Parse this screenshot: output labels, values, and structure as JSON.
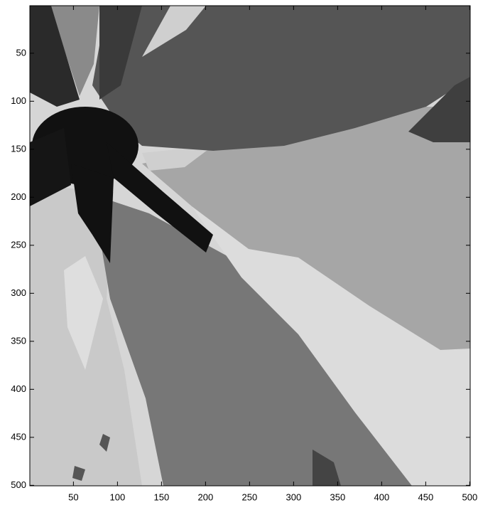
{
  "chart_data": {
    "type": "image",
    "xlim": [
      0.5,
      500.5
    ],
    "ylim": [
      0.5,
      500.5
    ],
    "y_reversed": true,
    "xticks": [
      50,
      100,
      150,
      200,
      250,
      300,
      350,
      400,
      450,
      500
    ],
    "yticks": [
      50,
      100,
      150,
      200,
      250,
      300,
      350,
      400,
      450,
      500
    ]
  }
}
